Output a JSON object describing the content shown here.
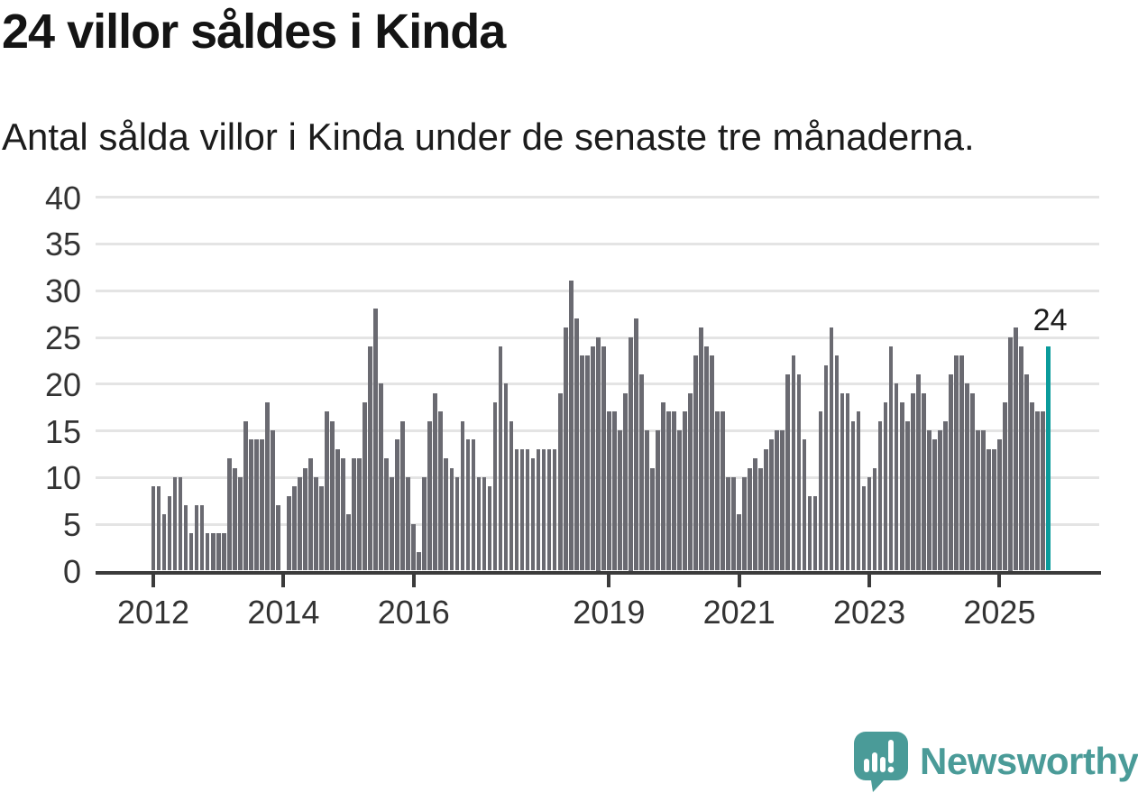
{
  "header": {
    "title": "24 villor såldes i Kinda",
    "subtitle": "Antal sålda villor i Kinda under de senaste tre månaderna."
  },
  "chart_data": {
    "type": "bar",
    "title": "24 villor såldes i Kinda",
    "subtitle": "Antal sålda villor i Kinda under de senaste tre månaderna.",
    "unit": "sålda villor (rullande 3 månader)",
    "start_month": "2012-01",
    "frequency": "monthly",
    "grid": true,
    "ylim": [
      0,
      40
    ],
    "yticks": [
      0,
      5,
      10,
      15,
      20,
      25,
      30,
      35,
      40
    ],
    "xticks": [
      {
        "label": "2012",
        "month_index": 0
      },
      {
        "label": "2014",
        "month_index": 24
      },
      {
        "label": "2016",
        "month_index": 48
      },
      {
        "label": "2019",
        "month_index": 84
      },
      {
        "label": "2021",
        "month_index": 108
      },
      {
        "label": "2023",
        "month_index": 132
      },
      {
        "label": "2025",
        "month_index": 156
      }
    ],
    "values": [
      9,
      9,
      6,
      8,
      10,
      10,
      7,
      4,
      7,
      7,
      4,
      4,
      4,
      4,
      12,
      11,
      10,
      16,
      14,
      14,
      14,
      18,
      15,
      7,
      0,
      8,
      9,
      10,
      11,
      12,
      10,
      9,
      17,
      16,
      13,
      12,
      6,
      12,
      12,
      18,
      24,
      28,
      20,
      12,
      10,
      14,
      16,
      10,
      5,
      2,
      10,
      16,
      19,
      17,
      12,
      11,
      10,
      16,
      14,
      14,
      10,
      10,
      9,
      18,
      24,
      20,
      16,
      13,
      13,
      13,
      12,
      13,
      13,
      13,
      13,
      19,
      26,
      31,
      27,
      23,
      23,
      24,
      25,
      24,
      17,
      17,
      15,
      19,
      25,
      27,
      21,
      15,
      11,
      15,
      18,
      17,
      17,
      15,
      17,
      19,
      23,
      26,
      24,
      23,
      17,
      17,
      10,
      10,
      6,
      10,
      11,
      12,
      11,
      13,
      14,
      15,
      15,
      21,
      23,
      21,
      14,
      8,
      8,
      17,
      22,
      26,
      23,
      19,
      19,
      16,
      17,
      9,
      10,
      11,
      16,
      18,
      24,
      20,
      18,
      16,
      19,
      21,
      19,
      15,
      14,
      15,
      16,
      21,
      23,
      23,
      20,
      19,
      15,
      15,
      13,
      13,
      14,
      18,
      25,
      26,
      24,
      21,
      18,
      17,
      17,
      24
    ],
    "highlight_last": true,
    "last_value_label": "24",
    "colors": {
      "bar": "#6a6a71",
      "highlight": "#0a9b9b",
      "grid": "#e4e4e4",
      "axis": "#3b3b3b"
    },
    "legend_position": "none"
  },
  "footer": {
    "brand": "Newsworthy",
    "logo_icon": "newsworthy-speech-bubble-chart-icon",
    "brand_color": "#4a9b98"
  }
}
